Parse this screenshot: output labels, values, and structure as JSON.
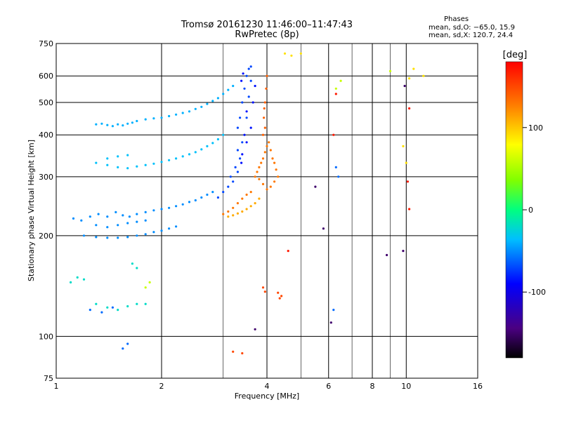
{
  "chart_data": {
    "type": "scatter",
    "title": "Tromsø 20161230 11:46:00–11:47:43",
    "subtitle": "RwPretec (8p)",
    "xlabel": "Frequency [MHz]",
    "ylabel": "Stationary phase Virtual Height [km]",
    "xscale": "log",
    "yscale": "log",
    "xlim": [
      1,
      16
    ],
    "ylim": [
      75,
      750
    ],
    "grid": true,
    "x_ticks": [
      1,
      2,
      4,
      6,
      8,
      10,
      16
    ],
    "x_tick_labels": [
      "1",
      "2",
      "4",
      "6",
      "8",
      "10",
      "16"
    ],
    "x_minor_grid": [
      3,
      5,
      7,
      9
    ],
    "y_ticks": [
      75,
      100,
      200,
      300,
      400,
      500,
      600,
      750
    ],
    "y_tick_labels": [
      "75",
      "100",
      "200",
      "300",
      "400",
      "500",
      "600",
      "750"
    ],
    "colorbar": {
      "label": "[deg]",
      "range": [
        -180,
        180
      ],
      "ticks": [
        100,
        0,
        -100
      ],
      "tick_labels": [
        "100",
        "0",
        "-100"
      ]
    },
    "stats": {
      "heading": "Phases",
      "line_o": "mean, sd,O: −65.0, 15.9",
      "line_x": "mean, sd,X: 120.7, 24.4"
    },
    "series": [
      {
        "phase_deg": -50,
        "points": [
          [
            1.12,
            225
          ],
          [
            1.18,
            222
          ],
          [
            1.25,
            228
          ],
          [
            1.32,
            232
          ],
          [
            1.4,
            228
          ],
          [
            1.48,
            235
          ],
          [
            1.55,
            230
          ],
          [
            1.62,
            228
          ],
          [
            1.7,
            232
          ],
          [
            1.8,
            235
          ],
          [
            1.9,
            238
          ],
          [
            2.0,
            240
          ],
          [
            2.1,
            242
          ],
          [
            2.2,
            245
          ],
          [
            2.3,
            248
          ],
          [
            2.4,
            252
          ],
          [
            2.5,
            255
          ],
          [
            2.6,
            260
          ],
          [
            2.7,
            265
          ],
          [
            2.8,
            270
          ],
          [
            1.3,
            215
          ],
          [
            1.4,
            212
          ],
          [
            1.5,
            215
          ],
          [
            1.6,
            218
          ],
          [
            1.7,
            220
          ],
          [
            1.8,
            222
          ],
          [
            1.2,
            200
          ],
          [
            1.3,
            198
          ],
          [
            1.4,
            197
          ],
          [
            1.5,
            197
          ],
          [
            1.6,
            198
          ],
          [
            1.7,
            200
          ],
          [
            1.8,
            202
          ],
          [
            1.9,
            205
          ],
          [
            2.0,
            207
          ],
          [
            2.1,
            210
          ],
          [
            2.2,
            213
          ]
        ]
      },
      {
        "phase_deg": -40,
        "points": [
          [
            1.3,
            430
          ],
          [
            1.35,
            432
          ],
          [
            1.4,
            428
          ],
          [
            1.45,
            425
          ],
          [
            1.5,
            430
          ],
          [
            1.55,
            427
          ],
          [
            1.6,
            432
          ],
          [
            1.65,
            435
          ],
          [
            1.7,
            440
          ],
          [
            1.8,
            445
          ],
          [
            1.9,
            448
          ],
          [
            2.0,
            450
          ],
          [
            2.1,
            455
          ],
          [
            2.2,
            460
          ],
          [
            2.3,
            465
          ],
          [
            2.4,
            470
          ],
          [
            2.5,
            478
          ],
          [
            2.6,
            485
          ],
          [
            2.7,
            495
          ],
          [
            2.8,
            505
          ],
          [
            2.9,
            515
          ],
          [
            3.0,
            530
          ],
          [
            3.1,
            545
          ],
          [
            3.2,
            560
          ]
        ]
      },
      {
        "phase_deg": -35,
        "points": [
          [
            1.3,
            330
          ],
          [
            1.4,
            325
          ],
          [
            1.5,
            320
          ],
          [
            1.6,
            318
          ],
          [
            1.7,
            322
          ],
          [
            1.8,
            325
          ],
          [
            1.9,
            328
          ],
          [
            2.0,
            332
          ],
          [
            2.1,
            336
          ],
          [
            2.2,
            340
          ],
          [
            2.3,
            345
          ],
          [
            2.4,
            350
          ],
          [
            2.5,
            355
          ],
          [
            2.6,
            362
          ],
          [
            2.7,
            370
          ],
          [
            2.8,
            378
          ],
          [
            2.9,
            388
          ],
          [
            3.0,
            400
          ],
          [
            1.4,
            340
          ],
          [
            1.5,
            345
          ],
          [
            1.6,
            348
          ]
        ]
      },
      {
        "phase_deg": -70,
        "points": [
          [
            3.3,
            420
          ],
          [
            3.35,
            450
          ],
          [
            3.4,
            500
          ],
          [
            3.45,
            550
          ],
          [
            3.5,
            600
          ],
          [
            3.55,
            630
          ],
          [
            3.6,
            640
          ],
          [
            3.4,
            380
          ],
          [
            3.35,
            340
          ],
          [
            3.3,
            310
          ],
          [
            3.2,
            290
          ],
          [
            3.1,
            280
          ],
          [
            3.0,
            270
          ],
          [
            2.9,
            260
          ],
          [
            3.5,
            450
          ],
          [
            3.55,
            520
          ],
          [
            3.6,
            580
          ],
          [
            3.3,
            360
          ],
          [
            3.25,
            320
          ],
          [
            3.15,
            300
          ]
        ]
      },
      {
        "phase_deg": -85,
        "points": [
          [
            3.5,
            470
          ],
          [
            3.45,
            400
          ],
          [
            3.4,
            350
          ],
          [
            3.38,
            330
          ],
          [
            3.5,
            380
          ],
          [
            3.6,
            420
          ],
          [
            3.65,
            500
          ],
          [
            3.7,
            560
          ],
          [
            3.42,
            610
          ],
          [
            3.38,
            580
          ]
        ]
      },
      {
        "phase_deg": 130,
        "points": [
          [
            3.7,
            300
          ],
          [
            3.75,
            310
          ],
          [
            3.8,
            320
          ],
          [
            3.85,
            330
          ],
          [
            3.9,
            340
          ],
          [
            3.95,
            355
          ],
          [
            4.0,
            370
          ],
          [
            4.05,
            380
          ],
          [
            4.1,
            360
          ],
          [
            4.15,
            340
          ],
          [
            4.2,
            330
          ],
          [
            4.25,
            315
          ],
          [
            4.3,
            300
          ],
          [
            4.2,
            290
          ],
          [
            4.1,
            280
          ],
          [
            4.0,
            275
          ],
          [
            3.9,
            285
          ],
          [
            3.8,
            295
          ],
          [
            3.6,
            270
          ],
          [
            3.5,
            265
          ],
          [
            3.4,
            258
          ],
          [
            3.3,
            250
          ],
          [
            3.2,
            242
          ],
          [
            3.1,
            236
          ],
          [
            3.0,
            232
          ]
        ]
      },
      {
        "phase_deg": 140,
        "points": [
          [
            3.9,
            400
          ],
          [
            3.92,
            450
          ],
          [
            3.95,
            500
          ],
          [
            3.98,
            550
          ],
          [
            4.0,
            600
          ],
          [
            3.95,
            420
          ],
          [
            3.93,
            480
          ]
        ]
      },
      {
        "phase_deg": 110,
        "points": [
          [
            3.1,
            228
          ],
          [
            3.2,
            230
          ],
          [
            3.3,
            233
          ],
          [
            3.4,
            236
          ],
          [
            3.5,
            240
          ],
          [
            3.6,
            245
          ],
          [
            3.7,
            250
          ],
          [
            3.8,
            258
          ]
        ]
      },
      {
        "phase_deg": 150,
        "points": [
          [
            4.3,
            135
          ],
          [
            4.35,
            130
          ],
          [
            4.4,
            132
          ],
          [
            3.9,
            140
          ],
          [
            3.95,
            136
          ],
          [
            3.2,
            90
          ],
          [
            3.4,
            89
          ]
        ]
      },
      {
        "phase_deg": 90,
        "points": [
          [
            4.5,
            700
          ],
          [
            4.7,
            690
          ],
          [
            5.0,
            700
          ],
          [
            10.2,
            590
          ],
          [
            10.5,
            630
          ],
          [
            11.2,
            600
          ],
          [
            9.8,
            370
          ],
          [
            10.0,
            330
          ]
        ]
      },
      {
        "phase_deg": -20,
        "points": [
          [
            1.1,
            145
          ],
          [
            1.15,
            150
          ],
          [
            1.2,
            148
          ],
          [
            1.3,
            125
          ],
          [
            1.4,
            122
          ],
          [
            1.5,
            120
          ],
          [
            1.6,
            123
          ],
          [
            1.7,
            125
          ],
          [
            1.8,
            125
          ],
          [
            1.65,
            165
          ],
          [
            1.7,
            160
          ]
        ]
      },
      {
        "phase_deg": -60,
        "points": [
          [
            1.25,
            120
          ],
          [
            1.35,
            118
          ],
          [
            1.45,
            122
          ],
          [
            1.55,
            92
          ],
          [
            1.6,
            95
          ],
          [
            6.3,
            320
          ],
          [
            6.4,
            300
          ],
          [
            6.2,
            120
          ]
        ]
      },
      {
        "phase_deg": 60,
        "points": [
          [
            6.3,
            550
          ],
          [
            6.5,
            580
          ],
          [
            9.0,
            620
          ],
          [
            1.8,
            140
          ],
          [
            1.85,
            145
          ]
        ]
      },
      {
        "phase_deg": -150,
        "points": [
          [
            9.9,
            560
          ],
          [
            9.8,
            180
          ],
          [
            8.8,
            175
          ],
          [
            5.8,
            210
          ],
          [
            5.5,
            280
          ],
          [
            3.7,
            105
          ],
          [
            6.1,
            110
          ]
        ]
      },
      {
        "phase_deg": 170,
        "points": [
          [
            6.2,
            400
          ],
          [
            10.2,
            480
          ],
          [
            6.3,
            530
          ],
          [
            10.1,
            290
          ],
          [
            10.2,
            240
          ],
          [
            4.6,
            180
          ]
        ]
      }
    ]
  }
}
